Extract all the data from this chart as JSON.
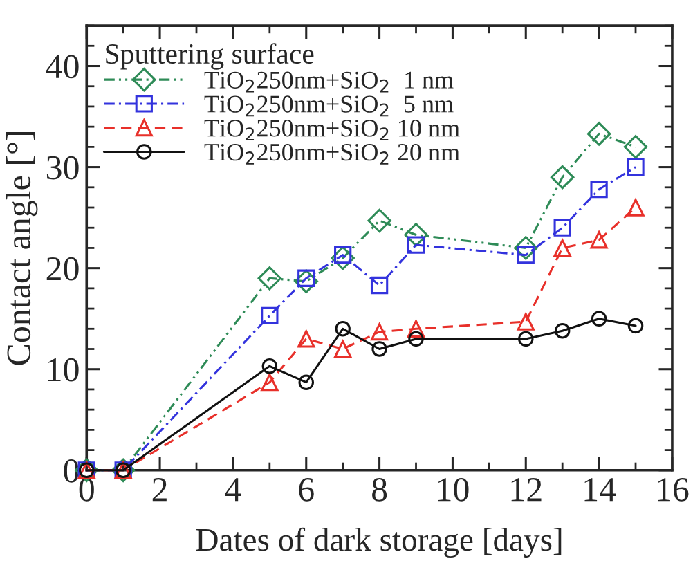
{
  "chart_data": {
    "type": "line",
    "xlabel": "Dates of dark storage [days]",
    "ylabel": "Contact angle [°]",
    "legend_title": "Sputtering surface",
    "x": [
      0,
      1,
      5,
      6,
      7,
      8,
      9,
      12,
      13,
      14,
      15
    ],
    "series": [
      {
        "name": "TiO$_{2}$250nm+SiO$_{2}$  1 nm",
        "color": "#2e8b57",
        "marker": "diamond",
        "line_style": "dashdotdot",
        "values": [
          0,
          0,
          19,
          18.7,
          21,
          24.7,
          23.3,
          22,
          29,
          33.3,
          32
        ]
      },
      {
        "name": "TiO$_{2}$250nm+SiO$_{2}$  5 nm",
        "color": "#3333dd",
        "marker": "square",
        "line_style": "dashdot",
        "values": [
          0,
          0,
          15.3,
          19,
          21.3,
          18.3,
          22.3,
          21.3,
          24,
          27.8,
          30
        ]
      },
      {
        "name": "TiO$_{2}$250nm+SiO$_{2}$ 10 nm",
        "color": "#e8302a",
        "marker": "triangle",
        "line_style": "dashed",
        "values": [
          0,
          0,
          8.7,
          13,
          12,
          13.7,
          14,
          14.7,
          22,
          22.8,
          26
        ]
      },
      {
        "name": "TiO$_{2}$250nm+SiO$_{2}$ 20 nm",
        "color": "#111111",
        "marker": "circle",
        "line_style": "solid",
        "values": [
          0,
          0,
          10.3,
          8.7,
          14,
          12,
          13,
          13,
          13.8,
          15,
          14.3
        ]
      }
    ],
    "xlim": [
      0,
      16
    ],
    "xticks": [
      0,
      2,
      4,
      6,
      8,
      10,
      12,
      14,
      16
    ],
    "ylim": [
      0,
      44
    ],
    "yticks": [
      0,
      10,
      20,
      30,
      40
    ],
    "grid": false,
    "legend": "top left"
  }
}
